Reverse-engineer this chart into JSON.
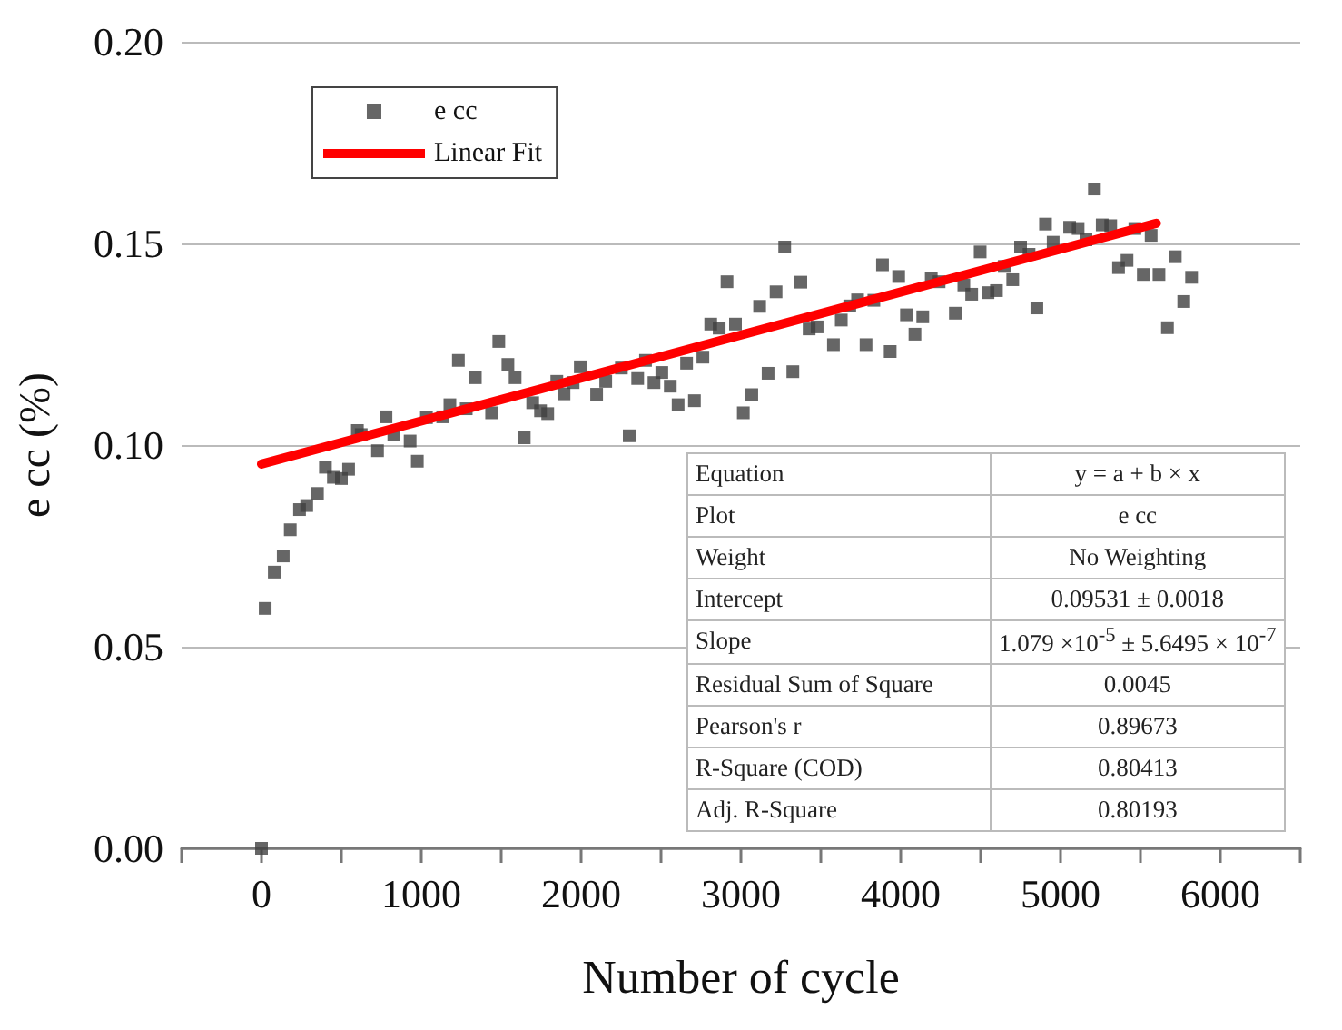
{
  "chart_data": {
    "type": "scatter",
    "xlabel": "Number of cycle",
    "ylabel": "e cc (%)",
    "xlim": [
      -500,
      6500
    ],
    "xticks": [
      {
        "value": -500,
        "label": null
      },
      0,
      {
        "value": 500,
        "label": null
      },
      1000,
      {
        "value": 1500,
        "label": null
      },
      2000,
      {
        "value": 2500,
        "label": null
      },
      3000,
      {
        "value": 3500,
        "label": null
      },
      4000,
      {
        "value": 4500,
        "label": null
      },
      5000,
      {
        "value": 5500,
        "label": null
      },
      6000,
      {
        "value": 6500,
        "label": null
      }
    ],
    "ylim": [
      0,
      0.2
    ],
    "yticks": [
      {
        "value": 0,
        "label": "0.00"
      },
      {
        "value": 0.05,
        "label": "0.05"
      },
      {
        "value": 0.1,
        "label": "0.10"
      },
      {
        "value": 0.15,
        "label": "0.15"
      },
      {
        "value": 0.2,
        "label": "0.20"
      }
    ],
    "grid": "y",
    "legend": "top left",
    "marker": "square",
    "series": [
      {
        "name": "e cc",
        "type": "scatter",
        "color": "#404040",
        "x": [
          0,
          23,
          80,
          136,
          180,
          238,
          283,
          350,
          400,
          450,
          500,
          545,
          600,
          624,
          726,
          779,
          828,
          930,
          975,
          1032,
          1134,
          1179,
          1232,
          1281,
          1338,
          1440,
          1485,
          1542,
          1587,
          1644,
          1697,
          1746,
          1791,
          1848,
          1893,
          1950,
          1995,
          2097,
          2154,
          2252,
          2301,
          2354,
          2403,
          2456,
          2505,
          2558,
          2607,
          2660,
          2709,
          2762,
          2811,
          2864,
          2913,
          2966,
          3015,
          3068,
          3117,
          3170,
          3220,
          3274,
          3325,
          3375,
          3427,
          3477,
          3579,
          3628,
          3681,
          3730,
          3783,
          3832,
          3886,
          3934,
          3987,
          4036,
          4089,
          4138,
          4191,
          4240,
          4342,
          4395,
          4444,
          4497,
          4546,
          4599,
          4648,
          4701,
          4750,
          4803,
          4852,
          4906,
          4954,
          5057,
          5110,
          5159,
          5212,
          5261,
          5314,
          5363,
          5416,
          5465,
          5518,
          5567,
          5616,
          5669,
          5718,
          5771,
          5820
        ],
        "values": [
          0,
          0.0595,
          0.0685,
          0.0725,
          0.079,
          0.084,
          0.085,
          0.088,
          0.0945,
          0.092,
          0.0917,
          0.094,
          0.1036,
          0.1026,
          0.0986,
          0.107,
          0.1027,
          0.101,
          0.096,
          0.1068,
          0.107,
          0.11,
          0.121,
          0.109,
          0.1167,
          0.108,
          0.1257,
          0.12,
          0.1167,
          0.1018,
          0.1105,
          0.1085,
          0.1078,
          0.1158,
          0.1127,
          0.1155,
          0.1194,
          0.1126,
          0.1158,
          0.1191,
          0.1023,
          0.1165,
          0.121,
          0.1155,
          0.118,
          0.1146,
          0.11,
          0.1203,
          0.111,
          0.1218,
          0.13,
          0.129,
          0.1405,
          0.13,
          0.108,
          0.1125,
          0.1344,
          0.1178,
          0.138,
          0.1491,
          0.1182,
          0.1404,
          0.1288,
          0.1293,
          0.1249,
          0.131,
          0.1345,
          0.136,
          0.1249,
          0.1359,
          0.1447,
          0.1232,
          0.1418,
          0.1323,
          0.1275,
          0.1318,
          0.1413,
          0.1405,
          0.1327,
          0.1397,
          0.1374,
          0.1479,
          0.1378,
          0.1383,
          0.1443,
          0.141,
          0.1491,
          0.1473,
          0.134,
          0.1548,
          0.1503,
          0.154,
          0.1537,
          0.1509,
          0.1635,
          0.1546,
          0.1544,
          0.144,
          0.1458,
          0.1537,
          0.1423,
          0.152,
          0.1423,
          0.1291,
          0.1467,
          0.1356,
          0.1416
        ]
      },
      {
        "name": "Linear Fit",
        "type": "line",
        "color": "#ff0000",
        "marker": "none",
        "x": [
          0,
          5600
        ],
        "values": [
          0.0953,
          0.155
        ]
      }
    ],
    "annotations": [
      "Equation",
      "y = a + b × x",
      "Plot",
      "e cc",
      "Weight",
      "No Weighting",
      "Intercept",
      "0.09531 ± 0.0018",
      "Slope",
      "1.079 ×10$^{-5}$ ± 5.6495 × 10$^{-7}$",
      "Residual Sum of Square",
      "0.0045",
      "Pearson's r",
      "0.89673",
      "R-Square (COD)",
      "0.80413",
      "Adj. R-Square",
      "0.80193"
    ]
  }
}
